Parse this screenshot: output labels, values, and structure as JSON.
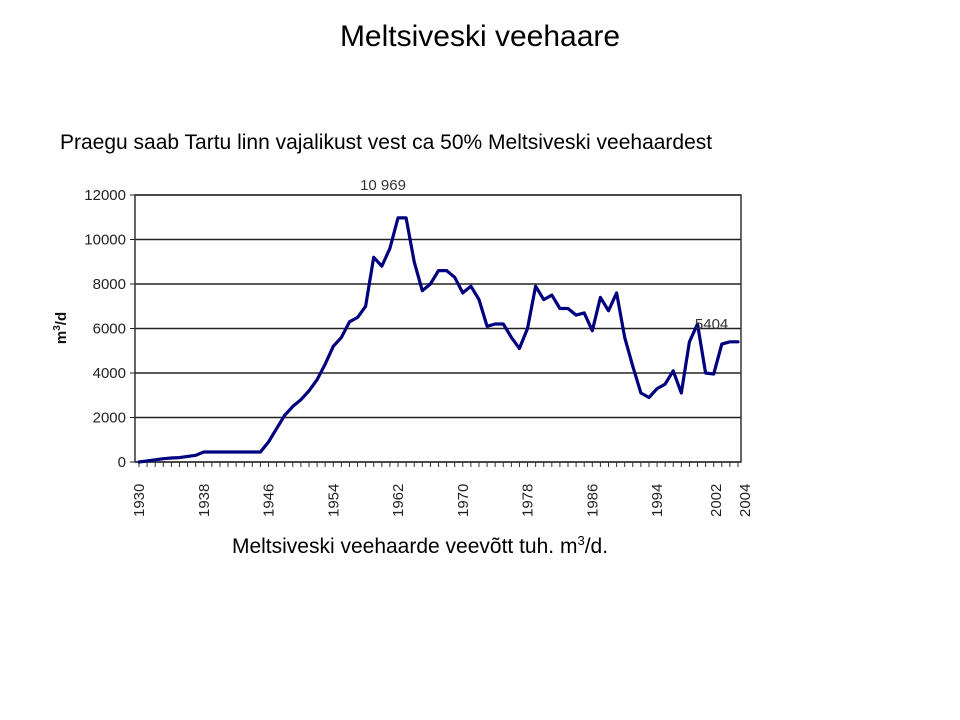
{
  "slide": {
    "title": "Meltsiveski veehaare",
    "subtitle": "Praegu saab Tartu linn vajalikust vest ca 50% Meltsiveski veehaardest",
    "caption_main": "Meltsiveski veehaarde veevõtt tuh. m",
    "caption_sup": "3",
    "caption_end": "/d."
  },
  "colors": {
    "line": "#00007f",
    "grid": "#000000",
    "background": "#ffffff"
  },
  "chart_data": {
    "type": "line",
    "title": "",
    "xlabel": "",
    "ylabel": "m³/d",
    "ylim": [
      0,
      12000
    ],
    "xlim": [
      1930,
      2004
    ],
    "grid": true,
    "legend": null,
    "yticks": [
      0,
      2000,
      4000,
      6000,
      8000,
      10000,
      12000
    ],
    "xtick_labels": [
      "1930",
      "1938",
      "1946",
      "1954",
      "1962",
      "1970",
      "1978",
      "1986",
      "1994",
      "2002",
      "2004"
    ],
    "annotations": [
      {
        "text": "10 969",
        "x": 1962.5,
        "y": 10969
      },
      {
        "text": "5404",
        "x": 2003,
        "y": 5404
      }
    ],
    "x": [
      1930,
      1931,
      1932,
      1933,
      1934,
      1935,
      1936,
      1937,
      1938,
      1939,
      1940,
      1941,
      1942,
      1943,
      1944,
      1945,
      1946,
      1947,
      1948,
      1949,
      1950,
      1951,
      1952,
      1953,
      1954,
      1955,
      1956,
      1957,
      1958,
      1959,
      1960,
      1961,
      1962,
      1963,
      1964,
      1965,
      1966,
      1967,
      1968,
      1969,
      1970,
      1971,
      1972,
      1973,
      1974,
      1975,
      1976,
      1977,
      1978,
      1979,
      1980,
      1981,
      1982,
      1983,
      1984,
      1985,
      1986,
      1987,
      1988,
      1989,
      1990,
      1991,
      1992,
      1993,
      1994,
      1995,
      1996,
      1997,
      1998,
      1999,
      2000,
      2001,
      2002,
      2003,
      2004
    ],
    "series": [
      {
        "name": "Meltsiveski veehaarde veevõtt",
        "values": [
          0,
          50,
          100,
          150,
          180,
          200,
          250,
          300,
          450,
          450,
          450,
          450,
          450,
          450,
          450,
          450,
          900,
          1500,
          2100,
          2500,
          2800,
          3200,
          3700,
          4400,
          5200,
          5600,
          6300,
          6500,
          7000,
          9200,
          8800,
          9600,
          10969,
          10969,
          9000,
          7700,
          8000,
          8600,
          8600,
          8300,
          7600,
          7900,
          7300,
          6100,
          6200,
          6200,
          5600,
          5100,
          6000,
          7900,
          7300,
          7500,
          6900,
          6900,
          6600,
          6700,
          5900,
          7400,
          6800,
          7600,
          5600,
          4300,
          3100,
          2900,
          3300,
          3500,
          4100,
          3100,
          5400,
          6200,
          4000,
          3950,
          5300,
          5404,
          5404
        ]
      }
    ]
  }
}
